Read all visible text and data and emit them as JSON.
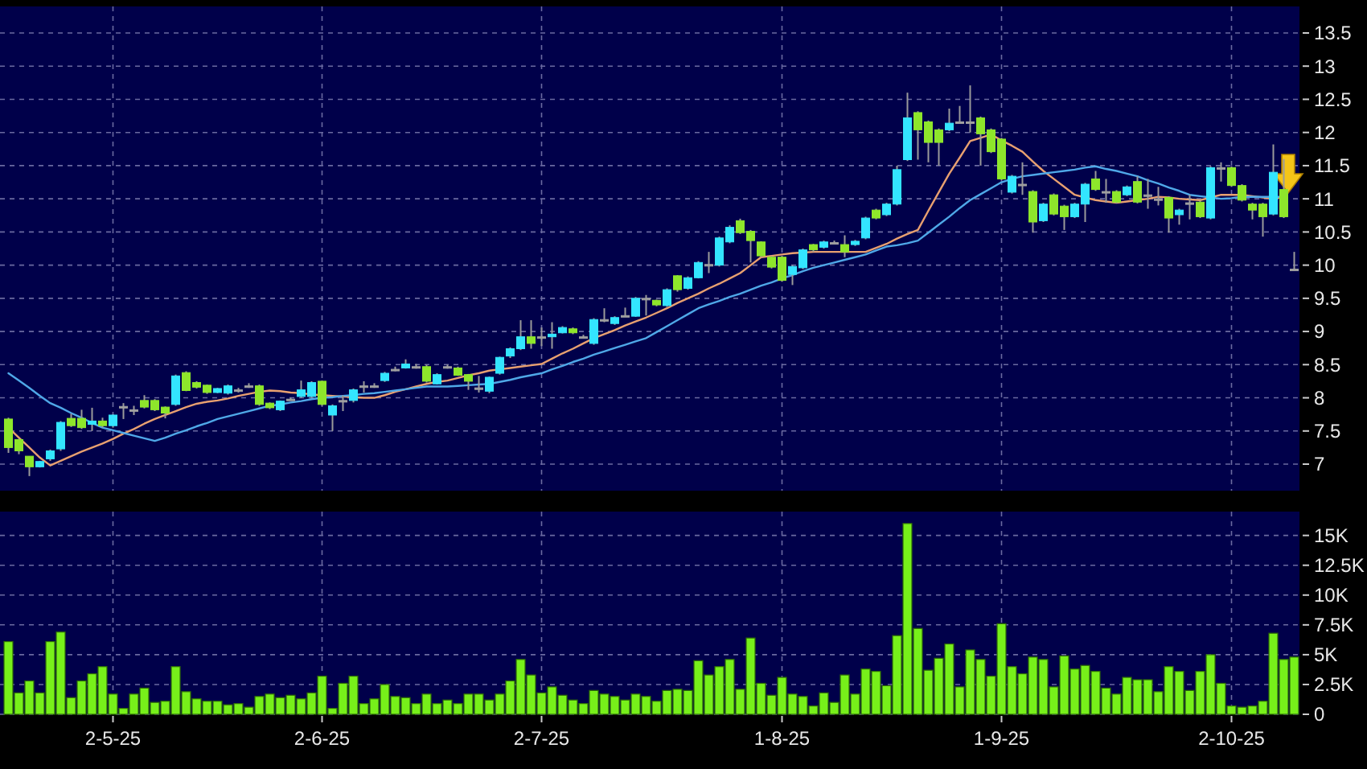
{
  "chart_data": [
    {
      "type": "candlestick",
      "tick_labels": "y",
      "grid": true,
      "categories": [
        null,
        null,
        null,
        null,
        null,
        null,
        null,
        null,
        null,
        null,
        null,
        null,
        null,
        null,
        null,
        null,
        null,
        null,
        null,
        null,
        null,
        null,
        null,
        null,
        null,
        null,
        null,
        null,
        null,
        null,
        null,
        null,
        null,
        null,
        null,
        null,
        null,
        null,
        null,
        null,
        null,
        null,
        null,
        null,
        null,
        null,
        null,
        null,
        null,
        null,
        null,
        null,
        null,
        null,
        null,
        null,
        null,
        null,
        null,
        null,
        null,
        null,
        null,
        null,
        null,
        null,
        null,
        null,
        null,
        null,
        null,
        null,
        null,
        null,
        null,
        null,
        null,
        null,
        null,
        null,
        null,
        null,
        null,
        null,
        null,
        null,
        null,
        null,
        null,
        null,
        null,
        null,
        null,
        null,
        null,
        null,
        null,
        null,
        null,
        null,
        null,
        null,
        null,
        null,
        null,
        null,
        null,
        null,
        null,
        null,
        null,
        null,
        null,
        null,
        null,
        null,
        null,
        null,
        null,
        null,
        null,
        null,
        null,
        null
      ],
      "ylim": [
        6.6,
        13.9
      ],
      "yticks": [
        7,
        7.5,
        8,
        8.5,
        9,
        9.5,
        10,
        10.5,
        11,
        11.5,
        12,
        12.5,
        13,
        13.5
      ],
      "ohlc": [
        [
          7.68,
          7.7,
          7.17,
          7.25
        ],
        [
          7.37,
          7.38,
          7.15,
          7.2
        ],
        [
          7.12,
          7.12,
          6.82,
          6.96
        ],
        [
          6.96,
          7.05,
          6.95,
          7.04
        ],
        [
          7.08,
          7.22,
          7.05,
          7.2
        ],
        [
          7.23,
          7.65,
          7.2,
          7.63
        ],
        [
          7.69,
          7.76,
          7.56,
          7.58
        ],
        [
          7.69,
          7.82,
          7.53,
          7.55
        ],
        [
          7.6,
          7.85,
          7.5,
          7.65
        ],
        [
          7.65,
          7.7,
          7.55,
          7.58
        ],
        [
          7.58,
          7.75,
          7.55,
          7.74
        ],
        [
          7.87,
          7.92,
          7.68,
          7.87
        ],
        [
          7.82,
          7.88,
          7.74,
          7.82
        ],
        [
          7.96,
          8.04,
          7.84,
          7.86
        ],
        [
          7.96,
          7.98,
          7.8,
          7.82
        ],
        [
          7.86,
          7.87,
          7.69,
          7.77
        ],
        [
          7.9,
          8.35,
          7.88,
          8.33
        ],
        [
          8.38,
          8.4,
          8.1,
          8.11
        ],
        [
          8.23,
          8.25,
          8.14,
          8.16
        ],
        [
          8.19,
          8.2,
          8.06,
          8.08
        ],
        [
          8.08,
          8.15,
          8.07,
          8.14
        ],
        [
          8.07,
          8.2,
          8.05,
          8.18
        ],
        [
          8.12,
          8.15,
          8.08,
          8.12
        ],
        [
          8.18,
          8.22,
          8.15,
          8.18
        ],
        [
          8.18,
          8.2,
          7.88,
          7.9
        ],
        [
          7.92,
          7.93,
          7.83,
          7.85
        ],
        [
          7.82,
          7.96,
          7.8,
          7.95
        ],
        [
          7.98,
          8.0,
          7.96,
          7.98
        ],
        [
          8.02,
          8.26,
          8.0,
          8.12
        ],
        [
          8.02,
          8.25,
          8.0,
          8.23
        ],
        [
          8.25,
          8.26,
          7.88,
          7.9
        ],
        [
          7.74,
          7.9,
          7.5,
          7.88
        ],
        [
          7.96,
          8.04,
          7.8,
          7.96
        ],
        [
          7.96,
          8.14,
          7.93,
          8.12
        ],
        [
          8.18,
          8.25,
          8.08,
          8.18
        ],
        [
          8.18,
          8.22,
          8.15,
          8.18
        ],
        [
          8.26,
          8.39,
          8.24,
          8.37
        ],
        [
          8.43,
          8.47,
          8.4,
          8.43
        ],
        [
          8.45,
          8.58,
          8.44,
          8.51
        ],
        [
          8.47,
          8.51,
          8.44,
          8.47
        ],
        [
          8.47,
          8.5,
          8.23,
          8.25
        ],
        [
          8.21,
          8.37,
          8.2,
          8.35
        ],
        [
          8.47,
          8.5,
          8.44,
          8.47
        ],
        [
          8.45,
          8.47,
          8.33,
          8.34
        ],
        [
          8.35,
          8.36,
          8.12,
          8.25
        ],
        [
          8.15,
          8.33,
          8.08,
          8.15
        ],
        [
          8.1,
          8.32,
          8.07,
          8.31
        ],
        [
          8.37,
          8.62,
          8.35,
          8.61
        ],
        [
          8.63,
          8.76,
          8.6,
          8.74
        ],
        [
          8.74,
          9.17,
          8.72,
          8.92
        ],
        [
          8.92,
          9.17,
          8.74,
          8.82
        ],
        [
          8.92,
          9.06,
          8.78,
          8.92
        ],
        [
          8.92,
          9.14,
          8.74,
          8.96
        ],
        [
          8.98,
          9.08,
          8.97,
          9.06
        ],
        [
          9.04,
          9.06,
          8.96,
          8.98
        ],
        [
          8.92,
          8.95,
          8.9,
          8.92
        ],
        [
          8.82,
          9.2,
          8.8,
          9.18
        ],
        [
          9.18,
          9.35,
          9.14,
          9.18
        ],
        [
          9.12,
          9.23,
          9.1,
          9.21
        ],
        [
          9.24,
          9.36,
          9.22,
          9.24
        ],
        [
          9.23,
          9.52,
          9.22,
          9.5
        ],
        [
          9.5,
          9.55,
          9.24,
          9.5
        ],
        [
          9.47,
          9.48,
          9.38,
          9.4
        ],
        [
          9.39,
          9.65,
          9.37,
          9.63
        ],
        [
          9.84,
          9.85,
          9.6,
          9.63
        ],
        [
          9.65,
          9.83,
          9.63,
          9.81
        ],
        [
          9.81,
          10.06,
          9.8,
          10.04
        ],
        [
          10.01,
          10.2,
          9.88,
          10.01
        ],
        [
          10.0,
          10.43,
          9.98,
          10.41
        ],
        [
          10.35,
          10.6,
          10.33,
          10.57
        ],
        [
          10.67,
          10.7,
          10.47,
          10.49
        ],
        [
          10.51,
          10.53,
          10.04,
          10.37
        ],
        [
          10.35,
          10.36,
          10.12,
          10.14
        ],
        [
          10.12,
          10.14,
          9.95,
          9.97
        ],
        [
          10.12,
          10.14,
          9.75,
          9.77
        ],
        [
          9.86,
          10.0,
          9.7,
          9.98
        ],
        [
          9.96,
          10.25,
          9.94,
          10.23
        ],
        [
          10.31,
          10.32,
          10.2,
          10.23
        ],
        [
          10.27,
          10.37,
          10.25,
          10.35
        ],
        [
          10.34,
          10.37,
          10.32,
          10.34
        ],
        [
          10.31,
          10.45,
          10.12,
          10.2
        ],
        [
          10.31,
          10.38,
          10.29,
          10.36
        ],
        [
          10.41,
          10.73,
          10.39,
          10.71
        ],
        [
          10.83,
          10.85,
          10.69,
          10.71
        ],
        [
          10.76,
          10.94,
          10.74,
          10.92
        ],
        [
          10.92,
          11.5,
          10.9,
          11.44
        ],
        [
          11.59,
          12.6,
          11.57,
          12.22
        ],
        [
          12.3,
          12.32,
          11.59,
          12.04
        ],
        [
          12.16,
          12.18,
          11.55,
          11.85
        ],
        [
          12.04,
          12.06,
          11.5,
          11.85
        ],
        [
          12.04,
          12.36,
          12.02,
          12.14
        ],
        [
          12.16,
          12.4,
          12.14,
          12.16
        ],
        [
          12.16,
          12.71,
          12.0,
          12.16
        ],
        [
          12.22,
          12.24,
          11.5,
          11.98
        ],
        [
          12.04,
          12.06,
          11.69,
          11.71
        ],
        [
          11.9,
          11.92,
          11.28,
          11.3
        ],
        [
          11.1,
          11.36,
          11.08,
          11.34
        ],
        [
          11.22,
          11.55,
          11.06,
          11.22
        ],
        [
          11.11,
          11.13,
          10.49,
          10.65
        ],
        [
          10.67,
          10.94,
          10.65,
          10.92
        ],
        [
          11.06,
          11.08,
          10.75,
          10.77
        ],
        [
          10.89,
          10.91,
          10.53,
          10.73
        ],
        [
          10.73,
          10.94,
          10.71,
          10.92
        ],
        [
          10.92,
          11.24,
          10.65,
          11.22
        ],
        [
          11.3,
          11.42,
          11.12,
          11.14
        ],
        [
          11.11,
          11.3,
          10.94,
          11.11
        ],
        [
          11.11,
          11.13,
          10.93,
          10.95
        ],
        [
          11.06,
          11.2,
          11.04,
          11.18
        ],
        [
          11.26,
          11.34,
          10.93,
          10.95
        ],
        [
          11.06,
          11.3,
          10.85,
          11.06
        ],
        [
          11.0,
          11.18,
          10.9,
          11.0
        ],
        [
          11.02,
          11.04,
          10.49,
          10.71
        ],
        [
          10.76,
          10.85,
          10.61,
          10.83
        ],
        [
          10.94,
          11.06,
          10.69,
          10.94
        ],
        [
          10.95,
          10.97,
          10.71,
          10.73
        ],
        [
          10.71,
          11.49,
          10.69,
          11.47
        ],
        [
          11.47,
          11.55,
          11.26,
          11.47
        ],
        [
          11.47,
          11.49,
          11.18,
          11.2
        ],
        [
          11.2,
          11.22,
          10.96,
          10.98
        ],
        [
          10.92,
          10.94,
          10.69,
          10.83
        ],
        [
          10.92,
          10.94,
          10.43,
          10.73
        ],
        [
          10.77,
          11.82,
          10.75,
          11.4
        ],
        [
          11.14,
          11.6,
          10.71,
          10.73
        ],
        [
          9.94,
          10.2,
          9.92,
          9.94
        ]
      ],
      "colors": [
        "#8ee62b",
        "#8ee62b",
        "#8ee62b",
        "#33e5ff",
        "#33e5ff",
        "#33e5ff",
        "#8ee62b",
        "#8ee62b",
        "#33e5ff",
        "#8ee62b",
        "#33e5ff",
        "#a0a0a0",
        "#a0a0a0",
        "#8ee62b",
        "#8ee62b",
        "#8ee62b",
        "#33e5ff",
        "#8ee62b",
        "#8ee62b",
        "#8ee62b",
        "#33e5ff",
        "#33e5ff",
        "#a0a0a0",
        "#a0a0a0",
        "#8ee62b",
        "#8ee62b",
        "#33e5ff",
        "#a0a0a0",
        "#33e5ff",
        "#33e5ff",
        "#8ee62b",
        "#33e5ff",
        "#a0a0a0",
        "#33e5ff",
        "#a0a0a0",
        "#a0a0a0",
        "#33e5ff",
        "#a0a0a0",
        "#33e5ff",
        "#a0a0a0",
        "#8ee62b",
        "#33e5ff",
        "#a0a0a0",
        "#8ee62b",
        "#8ee62b",
        "#a0a0a0",
        "#33e5ff",
        "#33e5ff",
        "#33e5ff",
        "#33e5ff",
        "#8ee62b",
        "#a0a0a0",
        "#33e5ff",
        "#33e5ff",
        "#8ee62b",
        "#a0a0a0",
        "#33e5ff",
        "#a0a0a0",
        "#33e5ff",
        "#a0a0a0",
        "#33e5ff",
        "#a0a0a0",
        "#8ee62b",
        "#33e5ff",
        "#8ee62b",
        "#33e5ff",
        "#33e5ff",
        "#a0a0a0",
        "#33e5ff",
        "#33e5ff",
        "#8ee62b",
        "#8ee62b",
        "#8ee62b",
        "#8ee62b",
        "#8ee62b",
        "#33e5ff",
        "#33e5ff",
        "#8ee62b",
        "#33e5ff",
        "#a0a0a0",
        "#8ee62b",
        "#33e5ff",
        "#33e5ff",
        "#8ee62b",
        "#33e5ff",
        "#33e5ff",
        "#33e5ff",
        "#8ee62b",
        "#8ee62b",
        "#8ee62b",
        "#33e5ff",
        "#a0a0a0",
        "#a0a0a0",
        "#8ee62b",
        "#8ee62b",
        "#8ee62b",
        "#33e5ff",
        "#a0a0a0",
        "#8ee62b",
        "#33e5ff",
        "#8ee62b",
        "#8ee62b",
        "#33e5ff",
        "#33e5ff",
        "#8ee62b",
        "#a0a0a0",
        "#8ee62b",
        "#33e5ff",
        "#8ee62b",
        "#a0a0a0",
        "#a0a0a0",
        "#8ee62b",
        "#33e5ff",
        "#a0a0a0",
        "#8ee62b",
        "#33e5ff",
        "#a0a0a0",
        "#8ee62b",
        "#8ee62b",
        "#8ee62b",
        "#8ee62b",
        "#33e5ff",
        "#8ee62b",
        "#a0a0a0"
      ],
      "series": [
        {
          "type": "line",
          "color": "#e8a070",
          "values": [
            7.55,
            7.4,
            7.25,
            7.1,
            6.98,
            7.05,
            7.12,
            7.19,
            7.25,
            7.31,
            7.38,
            7.46,
            7.53,
            7.61,
            7.68,
            7.74,
            7.8,
            7.86,
            7.91,
            7.94,
            7.96,
            7.99,
            8.03,
            8.06,
            8.09,
            8.11,
            8.1,
            8.08,
            8.07,
            8.05,
            8.04,
            8.03,
            8.02,
            8.01,
            8.0,
            8.0,
            8.04,
            8.09,
            8.13,
            8.17,
            8.21,
            8.24,
            8.26,
            8.3,
            8.34,
            8.37,
            8.41,
            8.43,
            8.45,
            8.47,
            8.49,
            8.51,
            8.59,
            8.67,
            8.74,
            8.82,
            8.9,
            8.96,
            9.02,
            9.09,
            9.15,
            9.21,
            9.28,
            9.35,
            9.43,
            9.5,
            9.57,
            9.65,
            9.72,
            9.8,
            9.88,
            10.0,
            10.12,
            10.14,
            10.16,
            10.18,
            10.19,
            10.2,
            10.2,
            10.2,
            10.2,
            10.2,
            10.2,
            10.26,
            10.32,
            10.4,
            10.47,
            10.53,
            10.82,
            11.1,
            11.38,
            11.62,
            11.87,
            11.92,
            11.97,
            11.88,
            11.8,
            11.71,
            11.56,
            11.42,
            11.3,
            11.18,
            11.06,
            11.02,
            10.98,
            10.96,
            10.94,
            10.96,
            10.98,
            11.0,
            11.03,
            11.02,
            11.0,
            10.99,
            10.98,
            11.02,
            11.06,
            11.06,
            11.06,
            11.04,
            11.02,
            11.0,
            11.03,
            null
          ]
        },
        {
          "type": "line",
          "color": "#4fa8e8",
          "values": [
            8.37,
            8.26,
            8.15,
            8.03,
            7.92,
            7.85,
            7.77,
            7.7,
            7.62,
            7.55,
            7.51,
            7.47,
            7.43,
            7.39,
            7.35,
            7.4,
            7.46,
            7.51,
            7.57,
            7.62,
            7.68,
            7.72,
            7.76,
            7.8,
            7.84,
            7.88,
            7.9,
            7.93,
            7.95,
            7.98,
            8.0,
            8.01,
            8.03,
            8.04,
            8.06,
            8.07,
            8.09,
            8.11,
            8.13,
            8.15,
            8.17,
            8.17,
            8.17,
            8.18,
            8.19,
            8.2,
            8.21,
            8.24,
            8.27,
            8.31,
            8.34,
            8.37,
            8.43,
            8.48,
            8.54,
            8.59,
            8.65,
            8.7,
            8.75,
            8.8,
            8.85,
            8.9,
            8.99,
            9.08,
            9.17,
            9.26,
            9.35,
            9.41,
            9.46,
            9.52,
            9.57,
            9.63,
            9.69,
            9.74,
            9.8,
            9.85,
            9.91,
            9.96,
            10.0,
            10.04,
            10.08,
            10.12,
            10.16,
            10.22,
            10.28,
            10.3,
            10.33,
            10.37,
            10.49,
            10.61,
            10.73,
            10.86,
            10.98,
            11.07,
            11.16,
            11.25,
            11.3,
            11.34,
            11.36,
            11.38,
            11.4,
            11.42,
            11.44,
            11.47,
            11.49,
            11.45,
            11.42,
            11.38,
            11.34,
            11.28,
            11.23,
            11.17,
            11.12,
            11.06,
            11.04,
            11.02,
            11.0,
            11.01,
            11.03,
            11.03,
            11.03,
            11.03,
            11.03,
            null
          ]
        }
      ]
    },
    {
      "type": "bar",
      "grid": true,
      "color": "#77f01a",
      "categories": [
        null,
        null,
        null,
        null,
        null,
        null,
        null,
        null,
        null,
        null,
        "2-5-25",
        null,
        null,
        null,
        null,
        null,
        null,
        null,
        null,
        null,
        null,
        null,
        null,
        null,
        null,
        null,
        null,
        null,
        null,
        null,
        "2-6-25",
        null,
        null,
        null,
        null,
        null,
        null,
        null,
        null,
        null,
        null,
        null,
        null,
        null,
        null,
        null,
        null,
        null,
        null,
        null,
        null,
        "2-7-25",
        null,
        null,
        null,
        null,
        null,
        null,
        null,
        null,
        null,
        null,
        null,
        null,
        null,
        null,
        null,
        null,
        null,
        null,
        null,
        null,
        null,
        null,
        "1-8-25",
        null,
        null,
        null,
        null,
        null,
        null,
        null,
        null,
        null,
        null,
        null,
        null,
        null,
        null,
        null,
        null,
        null,
        null,
        null,
        null,
        "1-9-25",
        null,
        null,
        null,
        null,
        null,
        null,
        null,
        null,
        null,
        null,
        null,
        null,
        null,
        null,
        null,
        null,
        null,
        null,
        null,
        null,
        null,
        "2-10-25",
        null,
        null,
        null,
        null,
        null,
        null
      ],
      "ylim": [
        0,
        17
      ],
      "yticks": [
        0,
        {
          "value": 2.5,
          "label": "2.5K"
        },
        {
          "value": 5,
          "label": "5K"
        },
        {
          "value": 7.5,
          "label": "7.5K"
        },
        {
          "value": 10,
          "label": "10K"
        },
        {
          "value": 12.5,
          "label": "12.5K"
        },
        {
          "value": 15,
          "label": "15K"
        }
      ],
      "values": [
        6.1,
        1.8,
        2.8,
        1.8,
        6.1,
        6.9,
        1.4,
        2.8,
        3.4,
        4.0,
        1.7,
        0.5,
        1.7,
        2.2,
        1.0,
        1.1,
        4.0,
        1.9,
        1.3,
        1.1,
        1.1,
        0.8,
        0.9,
        0.6,
        1.5,
        1.7,
        1.4,
        1.6,
        1.3,
        1.8,
        3.2,
        0.5,
        2.6,
        3.2,
        0.9,
        1.3,
        2.5,
        1.5,
        1.4,
        0.9,
        1.7,
        0.9,
        1.2,
        0.9,
        1.7,
        1.7,
        1.2,
        1.7,
        2.8,
        4.6,
        3.3,
        1.8,
        2.3,
        1.6,
        1.2,
        0.9,
        2.0,
        1.7,
        1.5,
        1.2,
        1.7,
        1.5,
        1.1,
        2.0,
        2.1,
        2.0,
        4.5,
        3.3,
        4.0,
        4.6,
        2.1,
        6.4,
        2.6,
        1.6,
        3.1,
        1.7,
        1.5,
        0.7,
        1.8,
        1.0,
        3.3,
        1.7,
        3.8,
        3.6,
        2.4,
        6.6,
        16.0,
        7.2,
        3.7,
        4.7,
        5.9,
        2.3,
        5.4,
        4.6,
        3.2,
        7.6,
        4.0,
        3.4,
        4.8,
        4.6,
        2.3,
        4.9,
        3.8,
        4.1,
        3.6,
        2.2,
        1.7,
        3.1,
        2.9,
        2.9,
        1.9,
        4.0,
        3.6,
        2.0,
        3.6,
        5.0,
        2.6,
        0.7,
        0.6,
        0.7,
        1.1,
        6.8,
        4.6,
        4.8
      ]
    }
  ]
}
